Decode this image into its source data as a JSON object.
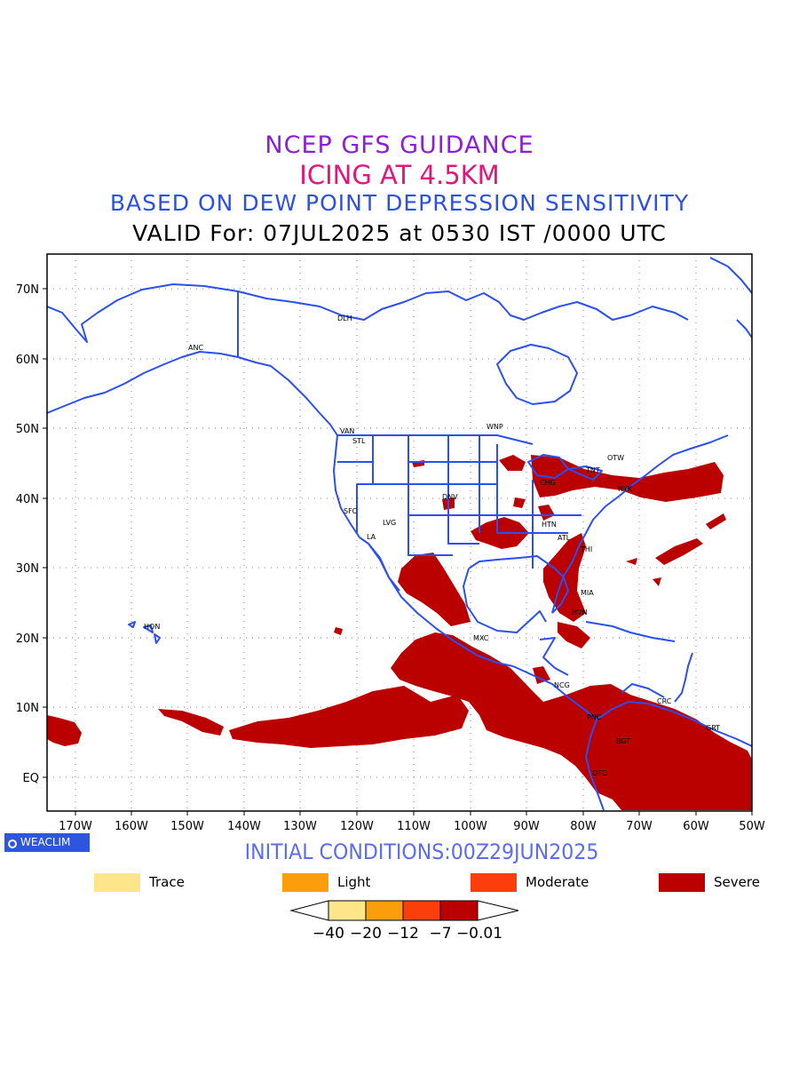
{
  "header": {
    "line1": "NCEP GFS GUIDANCE",
    "line2": "ICING AT 4.5KM",
    "line3": "BASED ON DEW POINT DEPRESSION SENSITIVITY",
    "line4": "VALID For: 07JUL2025 at 0530 IST /0000 UTC"
  },
  "map": {
    "lon_labels": [
      "170W",
      "160W",
      "150W",
      "140W",
      "130W",
      "120W",
      "110W",
      "100W",
      "90W",
      "80W",
      "70W",
      "60W",
      "50W"
    ],
    "lat_labels": [
      "70N",
      "60N",
      "50N",
      "40N",
      "30N",
      "20N",
      "10N",
      "EQ"
    ],
    "station_labels": [
      "DLH",
      "ANC",
      "VAN",
      "STL",
      "WNP",
      "OTW",
      "TNT",
      "CHG",
      "NYK",
      "SFC",
      "LVG",
      "LA",
      "DNV",
      "HTN",
      "ATL",
      "THI",
      "MIA",
      "HVN",
      "MXC",
      "NCG",
      "PNC",
      "CRC",
      "BGT",
      "GRT",
      "QTO",
      "HON"
    ],
    "colors": {
      "coast": "#2b4ff0",
      "grid": "#888888",
      "severe": "#bb0000"
    }
  },
  "logo": {
    "text": "WEACLIM"
  },
  "footer": {
    "initial_conditions": "INITIAL CONDITIONS:00Z29JUN2025"
  },
  "legend": [
    {
      "label": "Trace",
      "color": "#fde68a"
    },
    {
      "label": "Light",
      "color": "#fb9e0c"
    },
    {
      "label": "Moderate",
      "color": "#fc3d0c"
    },
    {
      "label": "Severe",
      "color": "#bb0000"
    }
  ],
  "colorbar": {
    "colors": [
      "#fde68a",
      "#fb9e0c",
      "#fc3d0c",
      "#bb0000"
    ],
    "ticks": [
      "−40",
      "−20",
      "−12",
      "−7",
      "−0.01"
    ]
  }
}
